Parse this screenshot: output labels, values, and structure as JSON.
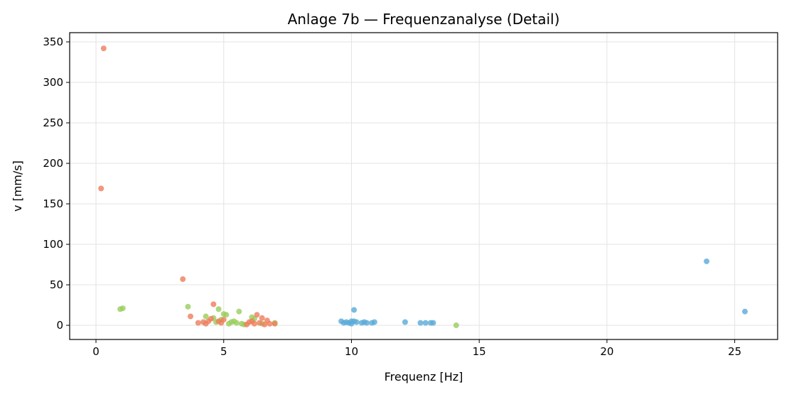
{
  "chart_data": {
    "type": "scatter",
    "title": "Anlage 7b — Frequenzanalyse (Detail)",
    "x_label": "Frequenz [Hz]",
    "y_label": "v [mm/s]",
    "xlim": [
      -1.03,
      26.68
    ],
    "xticks": [
      0,
      5,
      10,
      15,
      20,
      25
    ],
    "ylim": [
      -17.5,
      361.4
    ],
    "yticks": [
      0,
      50,
      100,
      150,
      200,
      250,
      300,
      350
    ],
    "grid": true,
    "series": [
      {
        "color": "#9acd5b",
        "x": [
          0.95,
          1.05,
          3.6,
          4.8,
          5.6,
          4.3,
          4.6,
          5.0,
          5.1,
          5.3,
          5.5,
          5.2,
          5.8,
          6.1,
          6.2,
          7.0,
          14.1,
          4.9,
          5.4,
          5.7,
          6.5,
          4.7
        ],
        "values": [
          20,
          21,
          23,
          20,
          17,
          11,
          9,
          14,
          13,
          4,
          3,
          2,
          1,
          10,
          8,
          3,
          0,
          7,
          5,
          2,
          2,
          4
        ]
      },
      {
        "color": "#ee7d5b",
        "x": [
          0.3,
          0.2,
          3.4,
          4.6,
          3.7,
          4.0,
          4.2,
          4.3,
          4.5,
          4.8,
          5.0,
          6.3,
          6.5,
          6.0,
          6.2,
          6.4,
          6.6,
          6.8,
          7.0,
          5.9,
          6.1,
          6.7,
          4.9,
          4.4
        ],
        "values": [
          342,
          169,
          57,
          26,
          11,
          3,
          4,
          2,
          8,
          5,
          7,
          13,
          9,
          4,
          2,
          3,
          1,
          2,
          2,
          1,
          5,
          6,
          3,
          5
        ]
      },
      {
        "color": "#5aaad8",
        "x": [
          9.6,
          9.8,
          9.9,
          10.0,
          10.1,
          10.1,
          10.2,
          10.4,
          10.5,
          10.6,
          10.8,
          10.9,
          12.1,
          12.7,
          12.9,
          13.1,
          13.2,
          23.9,
          25.4,
          9.7,
          10.0
        ],
        "values": [
          5,
          4,
          3,
          2,
          19,
          5,
          4,
          3,
          4,
          3,
          3,
          4,
          4,
          3,
          3,
          3,
          3,
          79,
          17,
          3,
          5
        ]
      }
    ]
  }
}
